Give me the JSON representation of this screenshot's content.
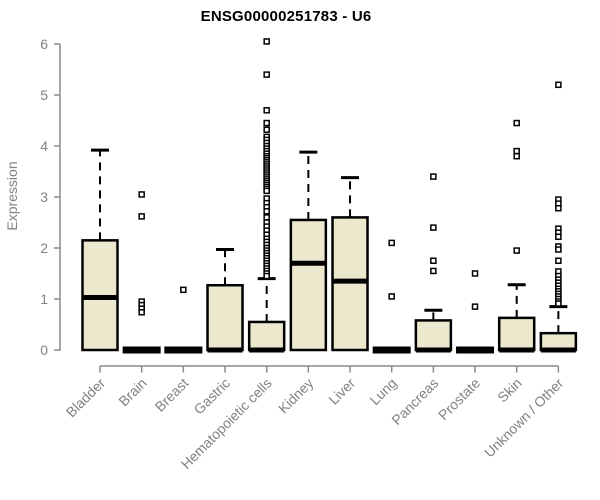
{
  "chart_data": {
    "type": "boxplot",
    "title": "ENSG00000251783 - U6",
    "ylabel": "Expression",
    "xlabel": "",
    "ylim": [
      0,
      6
    ],
    "y_ticks": [
      0,
      1,
      2,
      3,
      4,
      5,
      6
    ],
    "grid": false,
    "legend": "none",
    "colors": {
      "box_fill": "#ece8cd",
      "box_stroke": "#000000",
      "median": "#000000",
      "outlier_fill": "#ffffff",
      "outlier_stroke": "#000000",
      "axis": "#8a8a8a",
      "tick_label": "#828282",
      "title": "#000000"
    },
    "categories": [
      "Bladder",
      "Brain",
      "Breast",
      "Gastric",
      "Hematopoietic cells",
      "Kidney",
      "Liver",
      "Lung",
      "Pancreas",
      "Prostate",
      "Skin",
      "Unknown / Other"
    ],
    "series": [
      {
        "name": "Bladder",
        "flat": false,
        "low": 0,
        "q1": 0,
        "median": 1.03,
        "q3": 2.15,
        "high": 3.92,
        "outliers": []
      },
      {
        "name": "Brain",
        "flat": true,
        "low": 0,
        "q1": 0,
        "median": 0,
        "q3": 0,
        "high": 0,
        "outliers": [
          3.05,
          2.62,
          0.95,
          0.88,
          0.81,
          0.74
        ]
      },
      {
        "name": "Breast",
        "flat": true,
        "low": 0,
        "q1": 0,
        "median": 0,
        "q3": 0,
        "high": 0,
        "outliers": [
          1.18
        ]
      },
      {
        "name": "Gastric",
        "flat": false,
        "low": 0,
        "q1": 0,
        "median": 0,
        "q3": 1.27,
        "high": 1.97,
        "outliers": []
      },
      {
        "name": "Hematopoietic cells",
        "flat": false,
        "low": 0,
        "q1": 0,
        "median": 0,
        "q3": 0.55,
        "high": 1.4,
        "outliers": [
          6.05,
          5.4,
          4.7,
          4.45,
          4.32,
          4.18,
          4.12,
          4.06,
          4.0,
          3.95,
          3.9,
          3.85,
          3.8,
          3.76,
          3.72,
          3.68,
          3.64,
          3.6,
          3.56,
          3.52,
          3.48,
          3.44,
          3.4,
          3.36,
          3.32,
          3.28,
          3.24,
          3.2,
          3.16,
          3.12,
          2.97,
          2.88,
          2.8,
          2.72,
          2.6,
          2.5,
          2.42,
          2.34,
          2.26,
          2.18,
          2.12,
          2.06,
          2.0,
          1.95,
          1.9,
          1.85,
          1.8,
          1.75,
          1.7,
          1.65,
          1.6,
          1.55,
          1.5,
          1.45
        ]
      },
      {
        "name": "Kidney",
        "flat": false,
        "low": 0,
        "q1": 0,
        "median": 1.7,
        "q3": 2.55,
        "high": 3.88,
        "outliers": []
      },
      {
        "name": "Liver",
        "flat": false,
        "low": 0,
        "q1": 0,
        "median": 1.35,
        "q3": 2.6,
        "high": 3.38,
        "outliers": []
      },
      {
        "name": "Lung",
        "flat": true,
        "low": 0,
        "q1": 0,
        "median": 0,
        "q3": 0,
        "high": 0,
        "outliers": [
          2.1,
          1.05
        ]
      },
      {
        "name": "Pancreas",
        "flat": false,
        "low": 0,
        "q1": 0,
        "median": 0,
        "q3": 0.58,
        "high": 0.78,
        "outliers": [
          3.4,
          2.4,
          1.75,
          1.55
        ]
      },
      {
        "name": "Prostate",
        "flat": true,
        "low": 0,
        "q1": 0,
        "median": 0,
        "q3": 0,
        "high": 0,
        "outliers": [
          1.5,
          0.85
        ]
      },
      {
        "name": "Skin",
        "flat": false,
        "low": 0,
        "q1": 0,
        "median": 0,
        "q3": 0.63,
        "high": 1.28,
        "outliers": [
          4.45,
          3.9,
          3.8,
          1.95
        ]
      },
      {
        "name": "Unknown / Other",
        "flat": false,
        "low": 0,
        "q1": 0,
        "median": 0,
        "q3": 0.33,
        "high": 0.85,
        "outliers": [
          5.2,
          2.95,
          2.87,
          2.78,
          2.38,
          2.3,
          2.22,
          2.03,
          1.97,
          1.75,
          1.54,
          1.45,
          1.38,
          1.32,
          1.26,
          1.2,
          1.15,
          1.1,
          1.05,
          1.0,
          0.95,
          0.91
        ]
      }
    ]
  }
}
